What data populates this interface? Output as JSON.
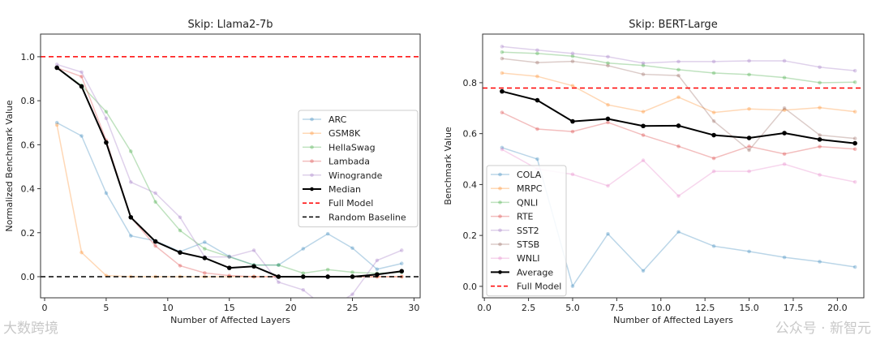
{
  "chart_data": [
    {
      "type": "line",
      "title": "Skip: Llama2-7b",
      "xlabel": "Number of Affected Layers",
      "ylabel": "Normalized Benchmark Value",
      "xlim": [
        -0.33,
        30.5
      ],
      "ylim": [
        -0.096,
        1.103
      ],
      "xticks": [
        0,
        5,
        10,
        15,
        20,
        25,
        30
      ],
      "yticks": [
        0.0,
        0.2,
        0.4,
        0.6,
        0.8,
        1.0
      ],
      "ytick_format": 1,
      "xtick_format": 0,
      "legend_position": "center-right",
      "x": [
        1,
        3,
        5,
        7,
        9,
        11,
        13,
        15,
        17,
        19,
        21,
        23,
        25,
        27,
        29
      ],
      "series": [
        {
          "name": "ARC",
          "color": "#1f77b4",
          "values": [
            0.7,
            0.64,
            0.38,
            0.186,
            0.163,
            0.114,
            0.157,
            0.092,
            0.053,
            0.053,
            0.127,
            0.195,
            0.13,
            0.034,
            0.06
          ]
        },
        {
          "name": "GSM8K",
          "color": "#ff7f0e",
          "values": [
            0.69,
            0.11,
            0.005,
            0,
            0,
            0,
            0,
            0,
            0,
            0,
            0,
            0,
            0,
            0,
            0
          ]
        },
        {
          "name": "HellaSwag",
          "color": "#2ca02c",
          "values": [
            0.95,
            0.87,
            0.75,
            0.57,
            0.34,
            0.21,
            0.127,
            0.09,
            0.053,
            0.053,
            0.016,
            0.032,
            0.02,
            0.015,
            0.02
          ]
        },
        {
          "name": "Lambada",
          "color": "#d62728",
          "values": [
            0.95,
            0.91,
            0.62,
            0.27,
            0.14,
            0.05,
            0.017,
            0.005,
            0,
            0,
            0,
            0,
            0,
            0,
            0
          ]
        },
        {
          "name": "Winogrande",
          "color": "#9467bd",
          "values": [
            0.965,
            0.93,
            0.72,
            0.43,
            0.38,
            0.27,
            0.09,
            0.09,
            0.12,
            -0.025,
            -0.06,
            -0.15,
            -0.08,
            0.074,
            0.12
          ]
        },
        {
          "name": "Median",
          "color": "#000000",
          "bold": true,
          "values": [
            0.95,
            0.865,
            0.61,
            0.27,
            0.16,
            0.11,
            0.085,
            0.04,
            0.047,
            0,
            0,
            0,
            0,
            0.01,
            0.025
          ]
        }
      ],
      "hlines": [
        {
          "name": "Full Model",
          "y": 1.0,
          "color": "#ff0000"
        },
        {
          "name": "Random Baseline",
          "y": 0.0,
          "color": "#000000"
        }
      ]
    },
    {
      "type": "line",
      "title": "Skip: BERT-Large",
      "xlabel": "Number of Affected Layers",
      "ylabel": "Benchmark Value",
      "xlim": [
        -0.1,
        21.5
      ],
      "ylim": [
        -0.045,
        0.991
      ],
      "xticks": [
        0.0,
        2.5,
        5.0,
        7.5,
        10.0,
        12.5,
        15.0,
        17.5,
        20.0
      ],
      "yticks": [
        0.0,
        0.2,
        0.4,
        0.6,
        0.8
      ],
      "ytick_format": 1,
      "xtick_format": 1,
      "legend_position": "lower-left",
      "x": [
        1,
        3,
        5,
        7,
        9,
        11,
        13,
        15,
        17,
        19,
        21
      ],
      "series": [
        {
          "name": "COLA",
          "color": "#1f77b4",
          "values": [
            0.545,
            0.5,
            0.001,
            0.206,
            0.061,
            0.214,
            0.158,
            0.137,
            0.114,
            0.097,
            0.076
          ]
        },
        {
          "name": "MRPC",
          "color": "#ff7f0e",
          "values": [
            0.838,
            0.825,
            0.788,
            0.713,
            0.686,
            0.743,
            0.683,
            0.697,
            0.692,
            0.702,
            0.686
          ]
        },
        {
          "name": "QNLI",
          "color": "#2ca02c",
          "values": [
            0.92,
            0.915,
            0.904,
            0.877,
            0.868,
            0.851,
            0.838,
            0.832,
            0.82,
            0.8,
            0.802
          ]
        },
        {
          "name": "RTE",
          "color": "#d62728",
          "values": [
            0.683,
            0.618,
            0.608,
            0.644,
            0.594,
            0.55,
            0.503,
            0.55,
            0.52,
            0.549,
            0.539
          ]
        },
        {
          "name": "SST2",
          "color": "#9467bd",
          "values": [
            0.942,
            0.928,
            0.915,
            0.902,
            0.877,
            0.883,
            0.883,
            0.886,
            0.886,
            0.861,
            0.847
          ]
        },
        {
          "name": "STSB",
          "color": "#8c564b",
          "values": [
            0.895,
            0.879,
            0.884,
            0.867,
            0.833,
            0.828,
            0.649,
            0.535,
            0.7,
            0.594,
            0.581
          ]
        },
        {
          "name": "WNLI",
          "color": "#e377c2",
          "values": [
            0.538,
            0.461,
            0.44,
            0.395,
            0.495,
            0.355,
            0.452,
            0.452,
            0.48,
            0.438,
            0.41
          ]
        },
        {
          "name": "Average",
          "color": "#000000",
          "bold": true,
          "values": [
            0.766,
            0.731,
            0.648,
            0.658,
            0.63,
            0.631,
            0.594,
            0.583,
            0.602,
            0.577,
            0.562
          ]
        }
      ],
      "hlines": [
        {
          "name": "Full Model",
          "y": 0.779,
          "color": "#ff0000"
        }
      ]
    }
  ],
  "watermarks": [
    "大数跨境",
    "公众号 · 新智元"
  ]
}
